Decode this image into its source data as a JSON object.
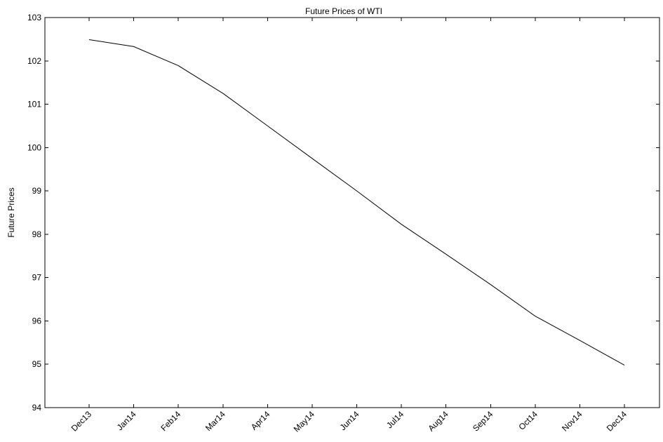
{
  "chart_data": {
    "type": "line",
    "title": "Future Prices of WTI",
    "xlabel": "",
    "ylabel": "Future Prices",
    "categories": [
      "Dec13",
      "Jan14",
      "Feb14",
      "Mar14",
      "Apr14",
      "May14",
      "Jun14",
      "Jul14",
      "Aug14",
      "Sep14",
      "Oct14",
      "Nov14",
      "Dec14"
    ],
    "series": [
      {
        "values": [
          102.49,
          102.33,
          101.89,
          101.25,
          100.5,
          99.75,
          99.0,
          98.23,
          97.54,
          96.84,
          96.11,
          95.55,
          94.98
        ]
      }
    ],
    "ylim": [
      94,
      103
    ],
    "yticks": [
      "94",
      "95",
      "96",
      "97",
      "98",
      "99",
      "100",
      "101",
      "102",
      "103"
    ],
    "grid": false,
    "line_color": "#000000"
  }
}
